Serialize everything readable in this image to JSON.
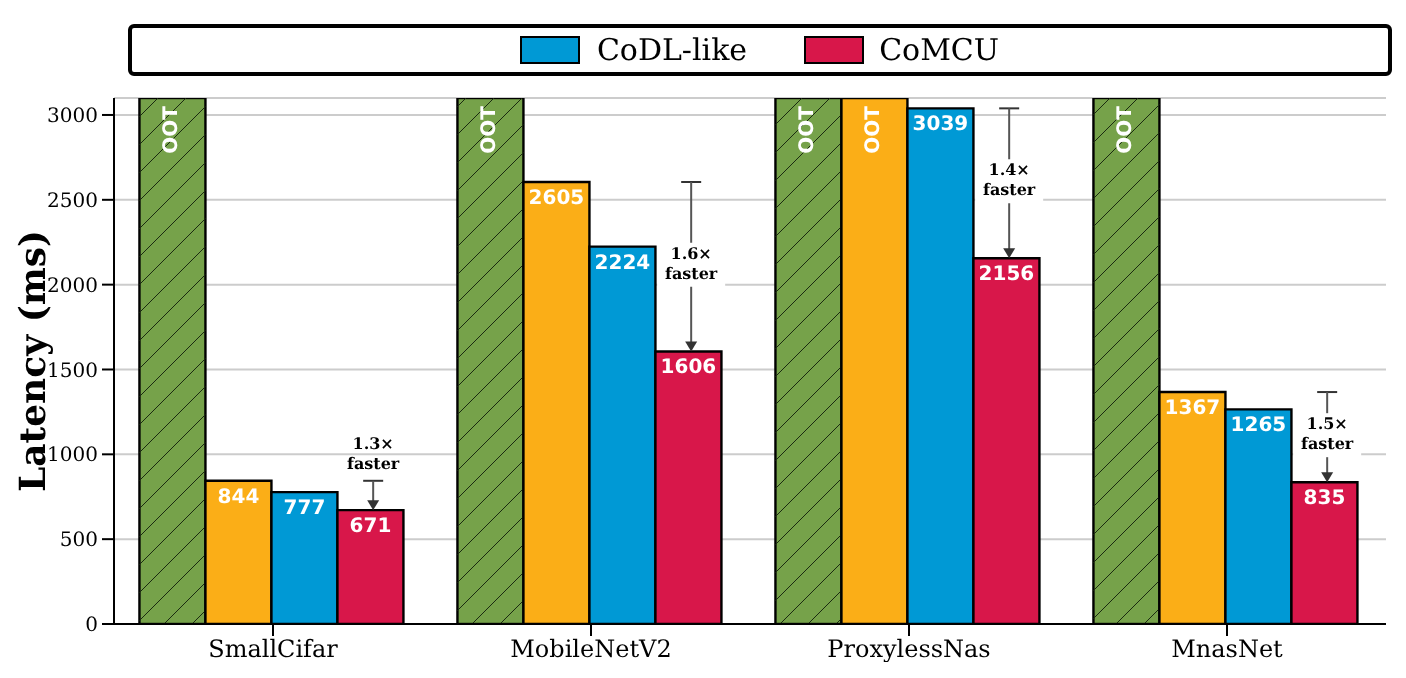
{
  "chart_data": {
    "type": "bar",
    "ylabel": "Latency (ms)",
    "categories": [
      "SmallCifar",
      "MobileNetV2",
      "ProxylessNas",
      "MnasNet"
    ],
    "series": [
      {
        "color": "#76a24a",
        "values": [
          3100,
          3100,
          3100,
          3100
        ],
        "value_labels": [
          "OOT",
          "OOT",
          "OOT",
          "OOT"
        ]
      },
      {
        "color": "#fbae17",
        "values": [
          844,
          2605,
          3100,
          1367
        ],
        "value_labels": [
          "844",
          "2605",
          "OOT",
          "1367"
        ]
      },
      {
        "name": "CoDL-like",
        "color": "#0099d5",
        "values": [
          777,
          2224,
          3039,
          1265
        ],
        "value_labels": [
          "777",
          "2224",
          "3039",
          "1265"
        ]
      },
      {
        "name": "CoMCU",
        "color": "#d8174a",
        "values": [
          671,
          1606,
          2156,
          835
        ],
        "value_labels": [
          "671",
          "1606",
          "2156",
          "835"
        ]
      }
    ],
    "ylim": [
      0,
      3100
    ],
    "yticks": [
      0,
      500,
      1000,
      1500,
      2000,
      2500,
      3000
    ],
    "grid": "y",
    "legend": "top",
    "annotations": [
      "1.3× faster",
      "1.6× faster",
      "1.4× faster",
      "1.5× faster"
    ]
  }
}
